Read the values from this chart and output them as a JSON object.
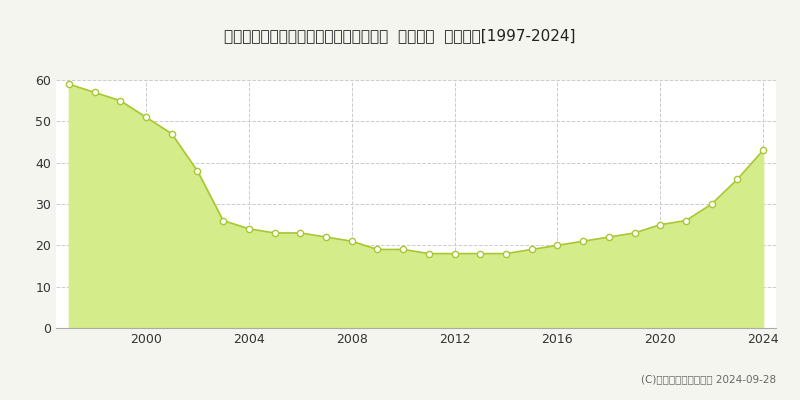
{
  "title": "福岡県福岡市東区多の津２丁目７番２２  基準地価  地価推移[1997-2024]",
  "years": [
    1997,
    1998,
    1999,
    2000,
    2001,
    2002,
    2003,
    2004,
    2005,
    2006,
    2007,
    2008,
    2009,
    2010,
    2011,
    2012,
    2013,
    2014,
    2015,
    2016,
    2017,
    2018,
    2019,
    2020,
    2021,
    2022,
    2023,
    2024
  ],
  "values": [
    59,
    57,
    55,
    51,
    47,
    38,
    26,
    24,
    23,
    23,
    22,
    21,
    19,
    19,
    18,
    18,
    18,
    18,
    19,
    20,
    21,
    22,
    23,
    25,
    26,
    30,
    36,
    43
  ],
  "fill_color": "#d4ed8a",
  "line_color": "#a8c832",
  "marker_color": "#ffffff",
  "marker_edge_color": "#a8c832",
  "grid_color": "#cccccc",
  "background_color": "#f5f5f0",
  "plot_bg_color": "#ffffff",
  "ylim": [
    0,
    60
  ],
  "yticks": [
    0,
    10,
    20,
    30,
    40,
    50,
    60
  ],
  "xticks": [
    2000,
    2004,
    2008,
    2012,
    2016,
    2020,
    2024
  ],
  "legend_color": "#c8e054",
  "copyright_text": "(C)土地価格ドットコム 2024-09-28"
}
